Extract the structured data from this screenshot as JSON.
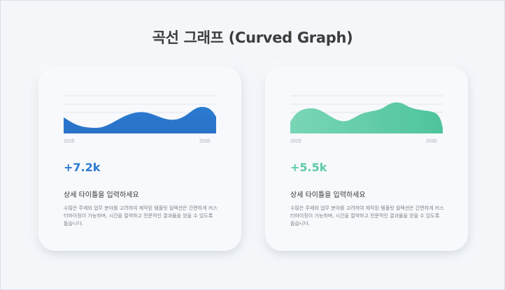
{
  "page": {
    "title": "곡선 그래프 (Curved Graph)"
  },
  "colors": {
    "blue": "#2b7ad1",
    "green": "#5ccaa5",
    "background": "#f4f7fa"
  },
  "cards": [
    {
      "value": "+7.2k",
      "value_color": "#2b7ad1",
      "axis_start": "2025",
      "axis_end": "2030",
      "subtitle": "상세 타이틀을 입력하세요",
      "description": "수많은 주제와 업무 분야를 고려하여 제작된 템플릿 컬렉션은 간편하게 커스터마이징이 가능하며, 시간을 절약하고 전문적인 결과물을 얻을 수 있도록 돕습니다."
    },
    {
      "value": "+5.5k",
      "value_color": "#5ccaa5",
      "axis_start": "2025",
      "axis_end": "2030",
      "subtitle": "상세 타이틀을 입력하세요",
      "description": "수많은 주제와 업무 분야를 고려하여 제작된 템플릿 컬렉션은 간편하게 커스터마이징이 가능하며, 시간을 절약하고 전문적인 결과물을 얻을 수 있도록 돕습니다."
    }
  ]
}
